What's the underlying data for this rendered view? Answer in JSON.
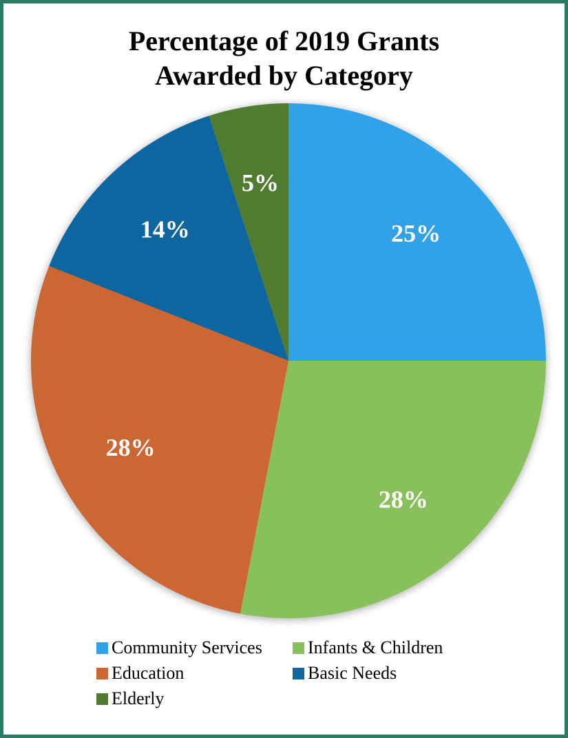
{
  "chart_data": {
    "type": "pie",
    "title": [
      "Percentage of 2019 Grants",
      "Awarded by Category"
    ],
    "categories": [
      "Community Services",
      "Infants & Children",
      "Education",
      "Basic Needs",
      "Elderly"
    ],
    "values": [
      25,
      28,
      28,
      14,
      5
    ],
    "labels": [
      "25%",
      "28%",
      "28%",
      "14%",
      "5%"
    ],
    "colors": [
      "#31a2e8",
      "#88c15c",
      "#cc6633",
      "#1166a0",
      "#4f7b2e"
    ],
    "legend_position": "bottom"
  },
  "frame": {
    "border_color": "#2a7a64"
  }
}
